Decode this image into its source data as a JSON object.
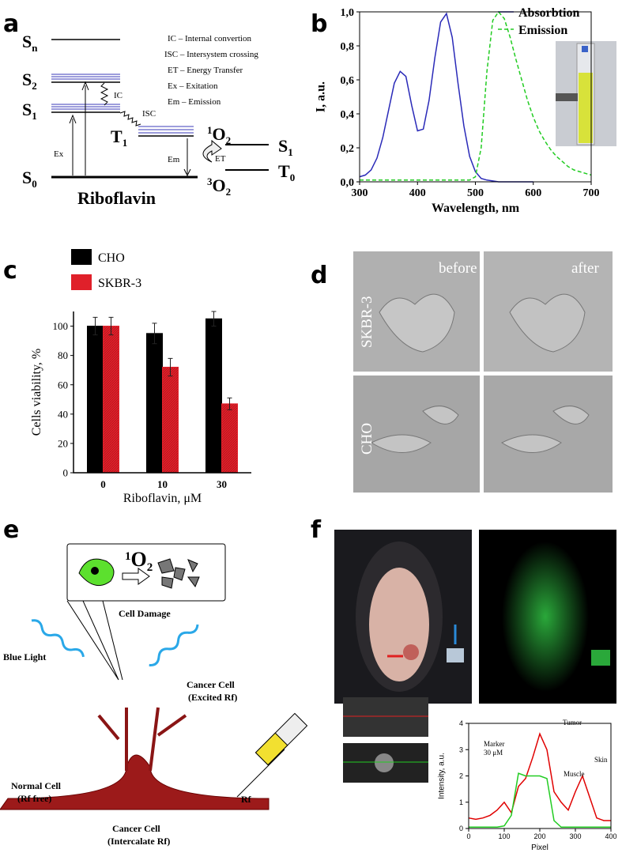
{
  "panel_labels": [
    "a",
    "b",
    "c",
    "d",
    "e",
    "f"
  ],
  "panel_a": {
    "levels": [
      {
        "symbol": "S",
        "index": "n"
      },
      {
        "symbol": "S",
        "index": "2"
      },
      {
        "symbol": "S",
        "index": "1"
      },
      {
        "symbol": "S",
        "index": "0"
      },
      {
        "symbol": "T",
        "index": "1"
      }
    ],
    "oxygen": [
      {
        "pre": "1",
        "symbol": "O",
        "index": "2"
      },
      {
        "pre": "3",
        "symbol": "O",
        "index": "2"
      }
    ],
    "oxygen_levels": [
      {
        "symbol": "S",
        "index": "1"
      },
      {
        "symbol": "T",
        "index": "0"
      }
    ],
    "transitions": [
      "IC",
      "ISC",
      "Ex",
      "Em",
      "ET"
    ],
    "legend": [
      "IC – Internal convertion",
      "ISC – Intersystem crossing",
      "ET – Energy Transfer",
      "Ex – Exitation",
      "Em – Emission"
    ],
    "molecule": "Riboflavin"
  },
  "chart_data": [
    {
      "type": "line",
      "x_label": "Wavelength, nm",
      "y_label": "I, a.u.",
      "legend": "upper right",
      "x": [
        300,
        310,
        320,
        330,
        340,
        350,
        360,
        370,
        380,
        390,
        400,
        410,
        420,
        430,
        440,
        450,
        460,
        470,
        480,
        490,
        500,
        510,
        520,
        530,
        540,
        550,
        560,
        570,
        580,
        590,
        600,
        610,
        620,
        630,
        640,
        650,
        660,
        670,
        680,
        690,
        700
      ],
      "series": [
        {
          "name": "Absorbtion",
          "color": "#2a2ab8",
          "linestyle": "solid",
          "values": [
            0.03,
            0.04,
            0.07,
            0.14,
            0.26,
            0.42,
            0.58,
            0.65,
            0.62,
            0.45,
            0.3,
            0.31,
            0.48,
            0.73,
            0.94,
            0.99,
            0.85,
            0.58,
            0.33,
            0.15,
            0.06,
            0.02,
            0.01,
            0.005,
            0,
            0,
            0,
            0,
            0,
            0,
            0,
            null,
            null,
            null,
            null,
            null,
            null,
            null,
            null,
            null,
            null
          ]
        },
        {
          "name": "Emission",
          "color": "#22cc22",
          "linestyle": "dashed",
          "values": [
            0.01,
            0.01,
            0.01,
            0.01,
            0.01,
            0.01,
            0.01,
            0.01,
            0.01,
            0.01,
            0.01,
            0.01,
            0.01,
            0.01,
            0.01,
            0.01,
            0.01,
            0.01,
            0.01,
            0.01,
            0.03,
            0.2,
            0.65,
            0.95,
            1.0,
            0.96,
            0.85,
            0.72,
            0.6,
            0.48,
            0.38,
            0.3,
            0.24,
            0.19,
            0.15,
            0.12,
            0.09,
            0.07,
            0.06,
            0.05,
            0.04
          ]
        }
      ],
      "xlim": [
        300,
        700
      ],
      "xticks": [
        300,
        400,
        500,
        600,
        700
      ],
      "ylim": [
        0,
        1.0
      ],
      "yticks": [
        {
          "value": 0,
          "label": "0,0"
        },
        {
          "value": 0.2,
          "label": "0,2"
        },
        {
          "value": 0.4,
          "label": "0,4"
        },
        {
          "value": 0.6,
          "label": "0,6"
        },
        {
          "value": 0.8,
          "label": "0,8"
        },
        {
          "value": 1.0,
          "label": "1,0"
        }
      ]
    },
    {
      "type": "bar",
      "x_label": "Riboflavin, μM",
      "y_label": "Cells viability, %",
      "legend": "top left",
      "categories": [
        "0",
        "10",
        "30"
      ],
      "series": [
        {
          "name": "CHO",
          "color": "#000000",
          "values": [
            100,
            95,
            105
          ],
          "errors": [
            6,
            7,
            5
          ]
        },
        {
          "name": "SKBR-3",
          "color": "#e0202a",
          "values": [
            100,
            72,
            47
          ],
          "errors": [
            6,
            6,
            4
          ]
        }
      ],
      "ylim": [
        0,
        110
      ],
      "yticks": [
        0,
        20,
        40,
        60,
        80,
        100
      ]
    },
    {
      "type": "line",
      "x_label": "Pixel",
      "y_label": "Intensity, a.u.",
      "x": [
        0,
        20,
        40,
        60,
        80,
        100,
        120,
        140,
        160,
        180,
        200,
        220,
        240,
        260,
        280,
        300,
        320,
        340,
        360,
        380,
        400
      ],
      "series": [
        {
          "color": "#e00000",
          "values": [
            0.4,
            0.35,
            0.4,
            0.5,
            0.7,
            1.0,
            0.6,
            1.6,
            1.9,
            2.7,
            3.6,
            3.0,
            1.4,
            1.0,
            0.7,
            1.4,
            2.0,
            1.2,
            0.4,
            0.3,
            0.3
          ]
        },
        {
          "color": "#22cc22",
          "values": [
            0.05,
            0.05,
            0.05,
            0.05,
            0.05,
            0.1,
            0.5,
            2.1,
            2.0,
            2.0,
            2.0,
            1.9,
            0.3,
            0.05,
            0.05,
            0.05,
            0.05,
            0.05,
            0.05,
            0.05,
            0.05
          ]
        }
      ],
      "xlim": [
        0,
        400
      ],
      "xticks": [
        0,
        100,
        200,
        300,
        400
      ],
      "ylim": [
        0,
        4
      ],
      "yticks": [
        0,
        1,
        2,
        3,
        4
      ],
      "annotations": [
        [
          "Tumor"
        ],
        [
          "Marker",
          "30 μM"
        ],
        [
          "Muscle"
        ],
        [
          "Skin"
        ]
      ]
    }
  ],
  "panel_d": {
    "columns": [
      "before",
      "after"
    ],
    "rows": [
      "SKBR-3",
      "CHO"
    ]
  },
  "panel_e": {
    "formula": {
      "pre": "1",
      "symbol": "O",
      "index": "2"
    },
    "caption": "Cell Damage",
    "light": "Blue Light",
    "labels": [
      [
        "Cancer Cell",
        "(Excited Rf)"
      ],
      [
        "Normal Cell",
        "(Rf free)"
      ],
      [
        "Cancer Cell",
        "(Intercalate Rf)"
      ]
    ],
    "agent": "Rf"
  }
}
